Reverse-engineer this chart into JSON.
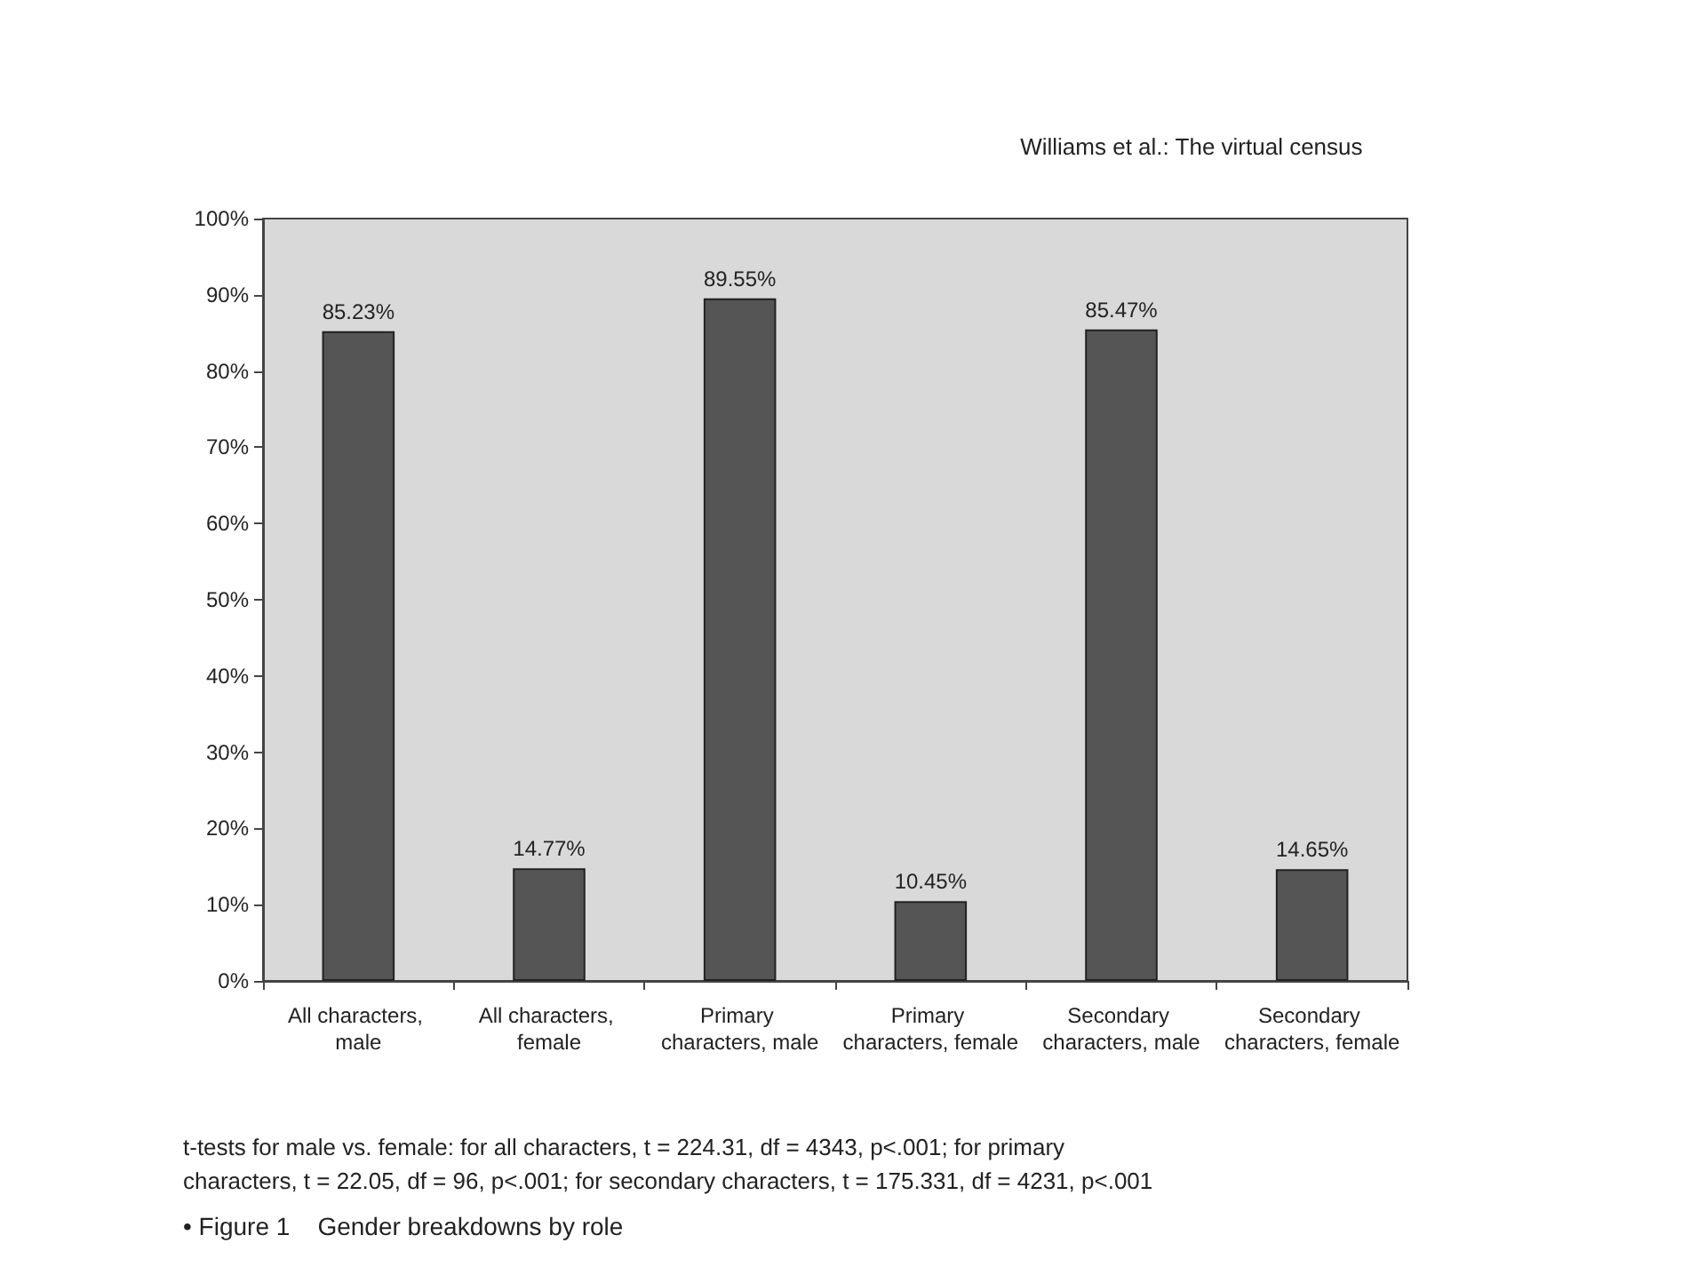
{
  "chart_data": {
    "type": "bar",
    "title": "• Figure 1    Gender breakdowns by role",
    "categories": [
      "All characters, male",
      "All characters, female",
      "Primary characters, male",
      "Primary characters, female",
      "Secondary characters, male",
      "Secondary characters, female"
    ],
    "values": [
      85.23,
      14.77,
      89.55,
      10.45,
      85.47,
      14.65
    ],
    "value_labels": [
      "85.23%",
      "14.77%",
      "89.55%",
      "10.45%",
      "85.47%",
      "14.65%"
    ],
    "color": "#555555",
    "ylim": [
      0,
      100
    ],
    "yticks": [
      {
        "value": 0,
        "label": "0%"
      },
      {
        "value": 10,
        "label": "10%"
      },
      {
        "value": 20,
        "label": "20%"
      },
      {
        "value": 30,
        "label": "30%"
      },
      {
        "value": 40,
        "label": "40%"
      },
      {
        "value": 50,
        "label": "50%"
      },
      {
        "value": 60,
        "label": "60%"
      },
      {
        "value": 70,
        "label": "70%"
      },
      {
        "value": 80,
        "label": "80%"
      },
      {
        "value": 90,
        "label": "90%"
      },
      {
        "value": 100,
        "label": "100%"
      }
    ],
    "annotations": [
      "Williams et al.: The virtual census",
      "t-tests for male vs. female: for all characters, t = 224.31, df = 4343, p<.001; for primary characters, t = 22.05, df = 96, p<.001; for secondary characters, t = 175.331, df = 4231, p<.001"
    ]
  }
}
